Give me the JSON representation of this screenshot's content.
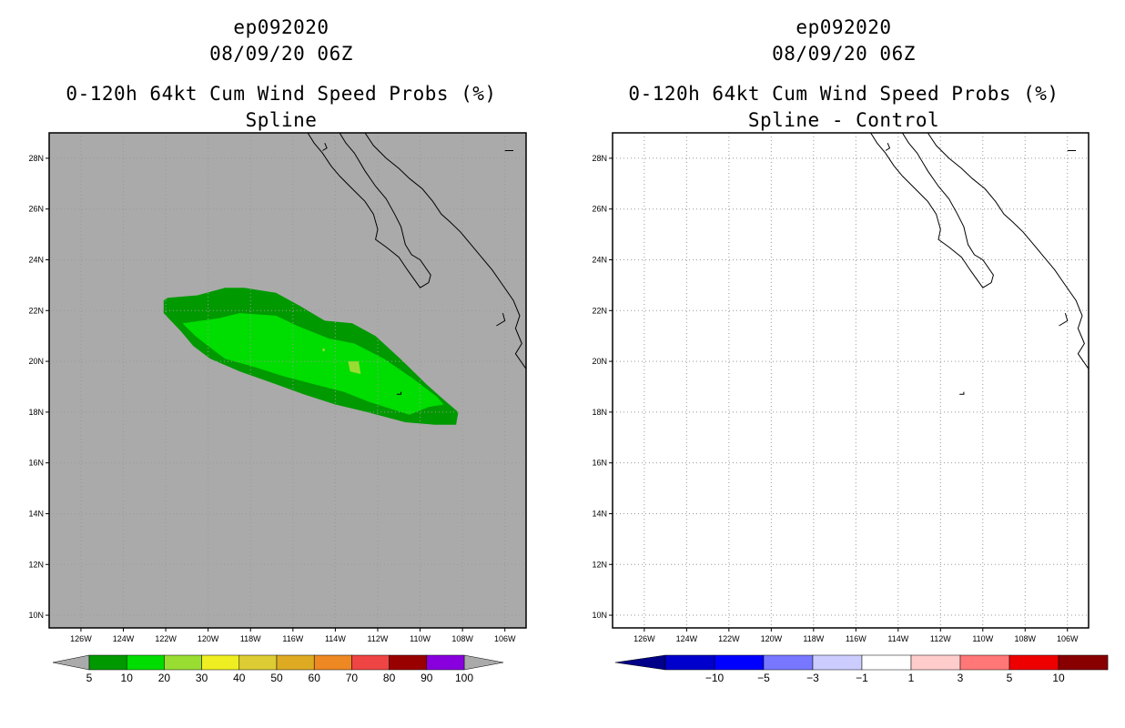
{
  "chart_data": [
    {
      "type": "heatmap",
      "storm_id": "ep092020",
      "datetime": "08/09/20 06Z",
      "title": "0-120h 64kt Cum Wind Speed Probs (%)",
      "subtitle": "Spline",
      "background_color": "#aaaaaa",
      "xlim": [
        -127.5,
        -105
      ],
      "ylim": [
        9.5,
        29
      ],
      "x_ticks": [
        -126,
        -124,
        -122,
        -120,
        -118,
        -116,
        -114,
        -112,
        -110,
        -108,
        -106
      ],
      "x_tick_labels": [
        "126W",
        "124W",
        "122W",
        "120W",
        "118W",
        "116W",
        "114W",
        "112W",
        "110W",
        "108W",
        "106W"
      ],
      "y_ticks": [
        10,
        12,
        14,
        16,
        18,
        20,
        22,
        24,
        26,
        28
      ],
      "y_tick_labels": [
        "10N",
        "12N",
        "14N",
        "16N",
        "18N",
        "20N",
        "22N",
        "24N",
        "26N",
        "28N"
      ],
      "contours": [
        {
          "level": "5-10",
          "color": "#009900",
          "polygon": [
            [
              -121.9,
              22.5
            ],
            [
              -120.5,
              22.6
            ],
            [
              -119.2,
              22.9
            ],
            [
              -118.3,
              22.9
            ],
            [
              -116.8,
              22.7
            ],
            [
              -115.7,
              22.2
            ],
            [
              -114.5,
              21.6
            ],
            [
              -113.2,
              21.5
            ],
            [
              -112.1,
              21.0
            ],
            [
              -110.8,
              20.0
            ],
            [
              -109.7,
              19.1
            ],
            [
              -108.9,
              18.5
            ],
            [
              -108.2,
              18.0
            ],
            [
              -108.3,
              17.5
            ],
            [
              -109.3,
              17.5
            ],
            [
              -110.7,
              17.6
            ],
            [
              -112.5,
              18.0
            ],
            [
              -114.0,
              18.3
            ],
            [
              -115.5,
              18.7
            ],
            [
              -116.8,
              19.1
            ],
            [
              -118.5,
              19.6
            ],
            [
              -119.9,
              20.1
            ],
            [
              -120.7,
              20.6
            ],
            [
              -121.3,
              21.2
            ],
            [
              -122.1,
              21.9
            ],
            [
              -122.1,
              22.4
            ]
          ]
        },
        {
          "level": "10-20",
          "color": "#00dd00",
          "polygon": [
            [
              -121.2,
              21.5
            ],
            [
              -119.5,
              21.7
            ],
            [
              -118.5,
              21.9
            ],
            [
              -116.8,
              21.8
            ],
            [
              -115.8,
              21.4
            ],
            [
              -114.3,
              20.9
            ],
            [
              -113.1,
              20.7
            ],
            [
              -111.7,
              20.1
            ],
            [
              -110.3,
              19.3
            ],
            [
              -109.2,
              18.6
            ],
            [
              -108.9,
              18.3
            ],
            [
              -109.6,
              18.2
            ],
            [
              -110.5,
              17.9
            ],
            [
              -112.4,
              18.4
            ],
            [
              -113.6,
              18.8
            ],
            [
              -115.0,
              19.1
            ],
            [
              -116.4,
              19.4
            ],
            [
              -117.9,
              19.8
            ],
            [
              -119.2,
              20.1
            ],
            [
              -120.0,
              20.6
            ],
            [
              -120.6,
              21.0
            ],
            [
              -121.1,
              21.4
            ]
          ]
        },
        {
          "level": "20-30",
          "color": "#99dd33",
          "polygon": [
            [
              -113.4,
              20.0
            ],
            [
              -112.9,
              20.0
            ],
            [
              -112.8,
              19.5
            ],
            [
              -113.3,
              19.6
            ]
          ]
        },
        {
          "level": "20-30",
          "color": "#99dd33",
          "polygon": [
            [
              -114.6,
              20.5
            ],
            [
              -114.5,
              20.5
            ],
            [
              -114.5,
              20.4
            ],
            [
              -114.6,
              20.4
            ]
          ]
        }
      ],
      "colorbar": {
        "labels": [
          "5",
          "10",
          "20",
          "30",
          "40",
          "50",
          "60",
          "70",
          "80",
          "90",
          "100"
        ],
        "colors": [
          "#009900",
          "#00dd00",
          "#99dd33",
          "#eeee22",
          "#ddcc33",
          "#ddaa22",
          "#ee8822",
          "#ee4444",
          "#990000",
          "#8800dd"
        ],
        "end_color": "#aaaaaa"
      }
    },
    {
      "type": "heatmap",
      "storm_id": "ep092020",
      "datetime": "08/09/20 06Z",
      "title": "0-120h 64kt Cum Wind Speed Probs (%)",
      "subtitle": "Spline - Control",
      "background_color": "#ffffff",
      "xlim": [
        -127.5,
        -105
      ],
      "ylim": [
        9.5,
        29
      ],
      "x_ticks": [
        -126,
        -124,
        -122,
        -120,
        -118,
        -116,
        -114,
        -112,
        -110,
        -108,
        -106
      ],
      "x_tick_labels": [
        "126W",
        "124W",
        "122W",
        "120W",
        "118W",
        "116W",
        "114W",
        "112W",
        "110W",
        "108W",
        "106W"
      ],
      "y_ticks": [
        10,
        12,
        14,
        16,
        18,
        20,
        22,
        24,
        26,
        28
      ],
      "y_tick_labels": [
        "10N",
        "12N",
        "14N",
        "16N",
        "18N",
        "20N",
        "22N",
        "24N",
        "26N",
        "28N"
      ],
      "contours": [],
      "colorbar": {
        "labels": [
          "-10",
          "-5",
          "-3",
          "-1",
          "1",
          "3",
          "5",
          "10"
        ],
        "colors": [
          "#0000cc",
          "#0000ff",
          "#7777ff",
          "#ccccff",
          "#ffffff",
          "#ffcccc",
          "#ff7777",
          "#ee0000",
          "#880000"
        ],
        "end_colors": [
          "#000088",
          "#880000"
        ]
      }
    }
  ],
  "coastlines": [
    [
      [
        -115.3,
        29.0
      ],
      [
        -115.0,
        28.6
      ],
      [
        -114.6,
        28.2
      ],
      [
        -114.2,
        27.7
      ],
      [
        -113.8,
        27.3
      ],
      [
        -113.2,
        26.8
      ],
      [
        -112.6,
        26.3
      ],
      [
        -112.2,
        25.8
      ],
      [
        -112.0,
        25.2
      ],
      [
        -112.1,
        24.8
      ],
      [
        -111.6,
        24.5
      ],
      [
        -111.0,
        24.1
      ],
      [
        -110.6,
        23.6
      ],
      [
        -110.0,
        22.9
      ],
      [
        -109.6,
        23.1
      ],
      [
        -109.5,
        23.4
      ],
      [
        -110.0,
        24.0
      ],
      [
        -110.4,
        24.2
      ],
      [
        -110.7,
        24.6
      ],
      [
        -110.9,
        25.3
      ],
      [
        -111.2,
        25.8
      ],
      [
        -111.6,
        26.4
      ],
      [
        -112.1,
        26.9
      ],
      [
        -112.6,
        27.5
      ],
      [
        -113.1,
        28.2
      ],
      [
        -113.5,
        28.6
      ],
      [
        -113.8,
        29.0
      ]
    ],
    [
      [
        -112.6,
        29.0
      ],
      [
        -112.2,
        28.5
      ],
      [
        -111.6,
        28.0
      ],
      [
        -111.0,
        27.6
      ],
      [
        -110.5,
        27.2
      ],
      [
        -109.9,
        26.8
      ],
      [
        -109.4,
        26.3
      ],
      [
        -109.0,
        25.8
      ],
      [
        -108.6,
        25.5
      ],
      [
        -108.1,
        25.1
      ],
      [
        -107.6,
        24.6
      ],
      [
        -107.1,
        24.1
      ],
      [
        -106.6,
        23.6
      ],
      [
        -106.1,
        23.0
      ],
      [
        -105.6,
        22.4
      ],
      [
        -105.3,
        21.8
      ],
      [
        -105.5,
        21.3
      ],
      [
        -105.2,
        20.7
      ],
      [
        -105.5,
        20.3
      ],
      [
        -105.0,
        19.7
      ]
    ],
    [
      [
        -114.5,
        28.6
      ],
      [
        -114.4,
        28.4
      ],
      [
        -114.6,
        28.3
      ]
    ],
    [
      [
        -106.0,
        28.3
      ],
      [
        -105.6,
        28.3
      ]
    ],
    [
      [
        -106.1,
        21.9
      ],
      [
        -106.0,
        21.6
      ],
      [
        -106.4,
        21.4
      ]
    ],
    [
      [
        -110.9,
        18.8
      ],
      [
        -110.9,
        18.7
      ],
      [
        -111.1,
        18.7
      ]
    ]
  ]
}
